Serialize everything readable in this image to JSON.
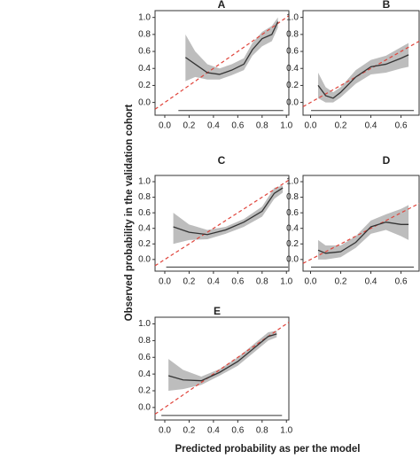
{
  "axis_labels": {
    "y": "Observed probability in the validation cohort",
    "x": "Predicted probability as per the model"
  },
  "chart_data": [
    {
      "type": "line",
      "title": "A",
      "x": [
        0.17,
        0.25,
        0.35,
        0.45,
        0.55,
        0.65,
        0.72,
        0.8,
        0.88,
        0.93
      ],
      "values": [
        0.53,
        0.45,
        0.35,
        0.33,
        0.38,
        0.45,
        0.62,
        0.75,
        0.8,
        0.95
      ],
      "upper": [
        0.8,
        0.6,
        0.45,
        0.4,
        0.45,
        0.52,
        0.7,
        0.83,
        0.9,
        1.0
      ],
      "lower": [
        0.25,
        0.3,
        0.27,
        0.27,
        0.32,
        0.38,
        0.55,
        0.66,
        0.72,
        0.88
      ],
      "color": "#333333",
      "band_color": "#bdbdbd",
      "reference_color": "#e0443b",
      "xlim": [
        -0.08,
        1.02
      ],
      "ylim": [
        -0.15,
        1.08
      ],
      "xticks": [
        {
          "value": 0,
          "label": "0.0"
        },
        0.2,
        0.4,
        0.6,
        0.8,
        {
          "value": 1,
          "label": "1.0"
        }
      ],
      "yticks": [
        {
          "value": 0,
          "label": "0.0"
        },
        0.2,
        0.4,
        0.6,
        0.8,
        {
          "value": 1,
          "label": "1.0"
        }
      ]
    },
    {
      "type": "line",
      "title": "B",
      "x": [
        0.05,
        0.1,
        0.15,
        0.2,
        0.3,
        0.4,
        0.5,
        0.6,
        0.65
      ],
      "values": [
        0.2,
        0.08,
        0.05,
        0.12,
        0.3,
        0.42,
        0.45,
        0.52,
        0.56
      ],
      "upper": [
        0.35,
        0.18,
        0.12,
        0.18,
        0.38,
        0.5,
        0.55,
        0.65,
        0.7
      ],
      "lower": [
        0.05,
        0,
        0,
        0.06,
        0.22,
        0.33,
        0.35,
        0.4,
        0.42
      ],
      "color": "#333333",
      "band_color": "#bdbdbd",
      "reference_color": "#e0443b",
      "xlim": [
        -0.05,
        0.72
      ],
      "ylim": [
        -0.15,
        1.08
      ],
      "xticks": [
        {
          "value": 0,
          "label": "0.0"
        },
        0.2,
        0.4,
        0.6
      ],
      "yticks": [
        {
          "value": 0,
          "label": "0.0"
        },
        0.2,
        0.4,
        0.6,
        0.8,
        {
          "value": 1,
          "label": "1.0"
        }
      ]
    },
    {
      "type": "line",
      "title": "C",
      "x": [
        0.07,
        0.2,
        0.35,
        0.5,
        0.65,
        0.8,
        0.9,
        0.97
      ],
      "values": [
        0.42,
        0.35,
        0.32,
        0.38,
        0.48,
        0.62,
        0.85,
        0.92
      ],
      "upper": [
        0.6,
        0.45,
        0.38,
        0.42,
        0.52,
        0.68,
        0.92,
        0.95
      ],
      "lower": [
        0.2,
        0.25,
        0.26,
        0.33,
        0.42,
        0.55,
        0.78,
        0.86
      ],
      "color": "#333333",
      "band_color": "#bdbdbd",
      "reference_color": "#e0443b",
      "xlim": [
        -0.08,
        1.02
      ],
      "ylim": [
        -0.15,
        1.08
      ],
      "xticks": [
        {
          "value": 0,
          "label": "0.0"
        },
        0.2,
        0.4,
        0.6,
        0.8,
        {
          "value": 1,
          "label": "1.0"
        }
      ],
      "yticks": [
        {
          "value": 0,
          "label": "0.0"
        },
        0.2,
        0.4,
        0.6,
        0.8,
        {
          "value": 1,
          "label": "1.0"
        }
      ]
    },
    {
      "type": "line",
      "title": "D",
      "x": [
        0.05,
        0.1,
        0.2,
        0.3,
        0.4,
        0.5,
        0.6,
        0.65
      ],
      "values": [
        0.12,
        0.08,
        0.1,
        0.22,
        0.42,
        0.48,
        0.45,
        0.45
      ],
      "upper": [
        0.25,
        0.18,
        0.18,
        0.3,
        0.5,
        0.58,
        0.65,
        0.7
      ],
      "lower": [
        0,
        0,
        0.03,
        0.15,
        0.33,
        0.38,
        0.3,
        0.25
      ],
      "color": "#333333",
      "band_color": "#bdbdbd",
      "reference_color": "#e0443b",
      "xlim": [
        -0.05,
        0.72
      ],
      "ylim": [
        -0.15,
        1.08
      ],
      "xticks": [
        {
          "value": 0,
          "label": "0.0"
        },
        0.2,
        0.4,
        0.6
      ],
      "yticks": [
        {
          "value": 0,
          "label": "0.0"
        },
        0.2,
        0.4,
        0.6,
        0.8,
        {
          "value": 1,
          "label": "1.0"
        }
      ]
    },
    {
      "type": "line",
      "title": "E",
      "x": [
        0.03,
        0.15,
        0.3,
        0.45,
        0.6,
        0.75,
        0.85,
        0.92
      ],
      "values": [
        0.38,
        0.33,
        0.32,
        0.42,
        0.55,
        0.73,
        0.85,
        0.88
      ],
      "upper": [
        0.58,
        0.45,
        0.37,
        0.46,
        0.6,
        0.78,
        0.9,
        0.92
      ],
      "lower": [
        0.2,
        0.22,
        0.27,
        0.38,
        0.5,
        0.68,
        0.8,
        0.84
      ],
      "color": "#333333",
      "band_color": "#bdbdbd",
      "reference_color": "#e0443b",
      "xlim": [
        -0.08,
        1.02
      ],
      "ylim": [
        -0.15,
        1.08
      ],
      "xticks": [
        {
          "value": 0,
          "label": "0.0"
        },
        0.2,
        0.4,
        0.6,
        0.8,
        {
          "value": 1,
          "label": "1.0"
        }
      ],
      "yticks": [
        {
          "value": 0,
          "label": "0.0"
        },
        0.2,
        0.4,
        0.6,
        0.8,
        {
          "value": 1,
          "label": "1.0"
        }
      ]
    }
  ]
}
